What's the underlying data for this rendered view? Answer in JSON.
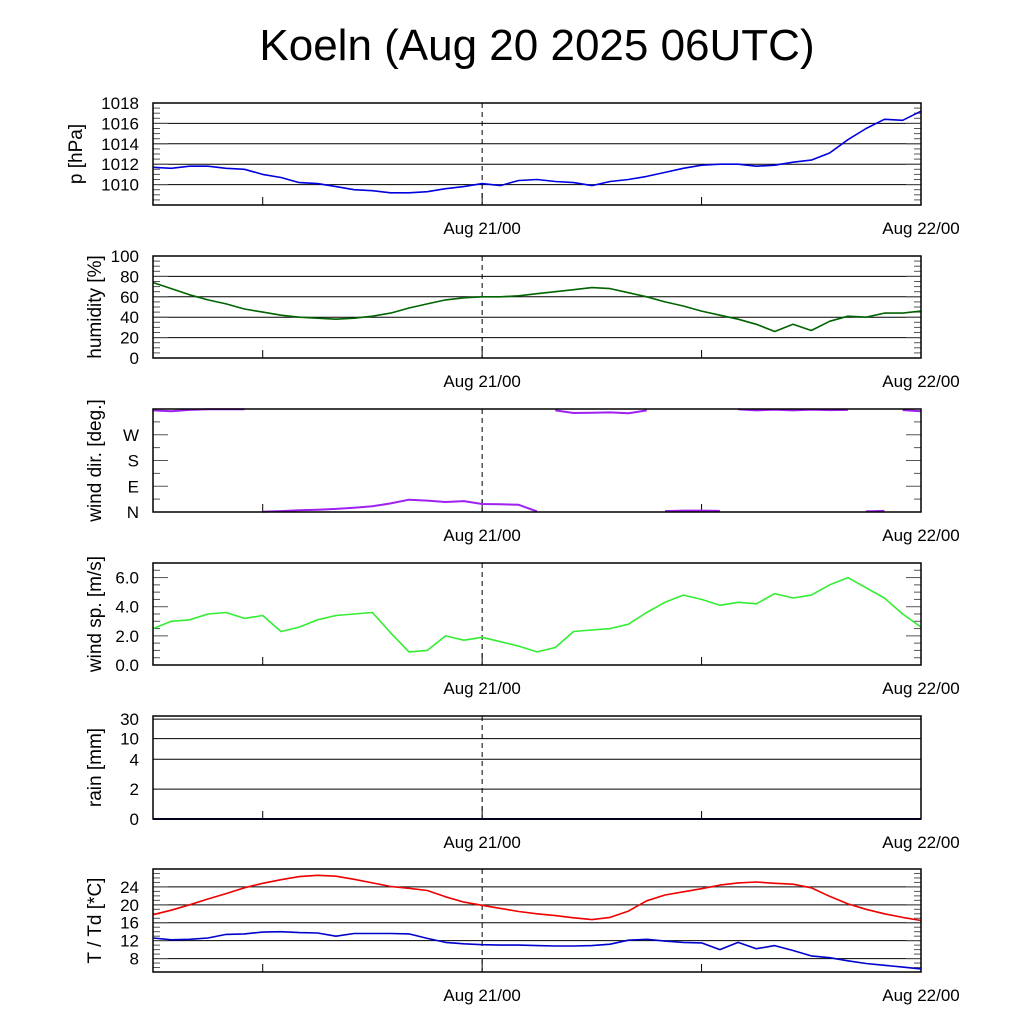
{
  "title": "Koeln (Aug 20 2025 06UTC)",
  "chart_data": [
    {
      "type": "line",
      "id": "pressure",
      "ylabel": "p [hPa]",
      "ylim": [
        1008,
        1018
      ],
      "yticks": [
        1010,
        1012,
        1014,
        1016,
        1018
      ],
      "ytick_labels": [
        "1010",
        "1012",
        "1014",
        "1016",
        "1018"
      ],
      "gridlines": [
        1010,
        1012,
        1014,
        1016
      ],
      "minor_step": 0.5,
      "xlabel_ticks": [
        "Aug 21/00",
        "Aug 22/00"
      ],
      "x_hours": "0..42 hourly from Aug 20 06UTC",
      "series": [
        {
          "name": "pressure",
          "color": "#0000e0",
          "values": [
            1011.7,
            1011.6,
            1011.8,
            1011.8,
            1011.6,
            1011.5,
            1011.0,
            1010.7,
            1010.2,
            1010.1,
            1009.8,
            1009.5,
            1009.4,
            1009.2,
            1009.2,
            1009.3,
            1009.6,
            1009.8,
            1010.1,
            1009.9,
            1010.4,
            1010.5,
            1010.3,
            1010.2,
            1009.9,
            1010.3,
            1010.5,
            1010.8,
            1011.2,
            1011.6,
            1011.9,
            1012.0,
            1012.0,
            1011.8,
            1011.9,
            1012.2,
            1012.4,
            1013.1,
            1014.4,
            1015.5,
            1016.4,
            1016.3,
            1017.2
          ]
        }
      ]
    },
    {
      "type": "line",
      "id": "humidity",
      "ylabel": "humidity [%]",
      "ylim": [
        0,
        100
      ],
      "yticks": [
        0,
        20,
        40,
        60,
        80,
        100
      ],
      "ytick_labels": [
        "0",
        "20",
        "40",
        "60",
        "80",
        "100"
      ],
      "gridlines": [
        20,
        40,
        60,
        80
      ],
      "minor_step": 5,
      "xlabel_ticks": [
        "Aug 21/00",
        "Aug 22/00"
      ],
      "series": [
        {
          "name": "humidity",
          "color": "#006400",
          "values": [
            74,
            68,
            62,
            57,
            53,
            48,
            45,
            42,
            40,
            39,
            38,
            39,
            41,
            44,
            49,
            53,
            57,
            59,
            60,
            60,
            61,
            63,
            65,
            67,
            69,
            68,
            64,
            60,
            55,
            51,
            46,
            42,
            38,
            33,
            26,
            33,
            27,
            36,
            41,
            40,
            44,
            44,
            46
          ]
        }
      ]
    },
    {
      "type": "line",
      "id": "wind_direction",
      "ylabel": "wind dir. [deg.]",
      "ylim": [
        0,
        360
      ],
      "yticks": [
        0,
        90,
        180,
        270
      ],
      "ytick_labels": [
        "N",
        "E",
        "S",
        "W"
      ],
      "gridlines": [],
      "minor_step": 45,
      "xlabel_ticks": [
        "Aug 21/00",
        "Aug 22/00"
      ],
      "series": [
        {
          "name": "wind direction",
          "color": "#a020f0",
          "values": [
            355,
            352,
            357,
            359,
            359,
            359,
            1,
            3,
            6,
            8,
            11,
            15,
            20,
            30,
            43,
            40,
            35,
            38,
            28,
            27,
            25,
            2,
            355,
            346,
            347,
            348,
            345,
            355,
            3,
            5,
            5,
            4,
            359,
            355,
            358,
            355,
            358,
            356,
            357,
            2,
            4,
            356,
            352
          ]
        }
      ]
    },
    {
      "type": "line",
      "id": "wind_speed",
      "ylabel": "wind sp. [m/s]",
      "ylim": [
        0,
        7
      ],
      "yticks": [
        0,
        2,
        4,
        6
      ],
      "ytick_labels": [
        "0.0",
        "2.0",
        "4.0",
        "6.0"
      ],
      "gridlines": [],
      "minor_step": 0.5,
      "xlabel_ticks": [
        "Aug 21/00",
        "Aug 22/00"
      ],
      "series": [
        {
          "name": "wind speed",
          "color": "#33ee33",
          "values": [
            2.5,
            3.0,
            3.1,
            3.5,
            3.6,
            3.2,
            3.4,
            2.3,
            2.6,
            3.1,
            3.4,
            3.5,
            3.6,
            2.2,
            0.9,
            1.0,
            2.0,
            1.7,
            1.9,
            1.6,
            1.3,
            0.9,
            1.2,
            2.3,
            2.4,
            2.5,
            2.8,
            3.6,
            4.3,
            4.8,
            4.5,
            4.1,
            4.3,
            4.2,
            4.9,
            4.6,
            4.8,
            5.5,
            6.0,
            5.3,
            4.6,
            3.5,
            2.6
          ]
        }
      ]
    },
    {
      "type": "line",
      "id": "rain",
      "ylabel": "rain [mm]",
      "ylim": [
        0,
        30
      ],
      "yticks": [
        0,
        2,
        4,
        10,
        30
      ],
      "ytick_labels": [
        "0",
        "2",
        "4",
        "10",
        "30"
      ],
      "gridlines": [
        2,
        4,
        10,
        30
      ],
      "xlabel_ticks": [
        "Aug 21/00",
        "Aug 22/00"
      ],
      "series": [
        {
          "name": "rain",
          "color": "#000080",
          "values": [
            0,
            0,
            0,
            0,
            0,
            0,
            0,
            0,
            0,
            0,
            0,
            0,
            0,
            0,
            0,
            0,
            0,
            0,
            0,
            0,
            0,
            0,
            0,
            0,
            0,
            0,
            0,
            0,
            0,
            0,
            0,
            0,
            0,
            0,
            0,
            0,
            0,
            0,
            0,
            0,
            0,
            0,
            0
          ]
        }
      ]
    },
    {
      "type": "line",
      "id": "temperature",
      "ylabel": "T / Td [*C]",
      "ylim": [
        5,
        28
      ],
      "yticks": [
        8,
        12,
        16,
        20,
        24
      ],
      "ytick_labels": [
        "8",
        "12",
        "16",
        "20",
        "24"
      ],
      "gridlines": [
        8,
        12,
        16,
        20,
        24
      ],
      "minor_step": 1,
      "xlabel_ticks": [
        "Aug 21/00",
        "Aug 22/00"
      ],
      "series": [
        {
          "name": "T",
          "color": "#ee0000",
          "values": [
            17.8,
            18.8,
            20.0,
            21.3,
            22.5,
            23.8,
            24.8,
            25.6,
            26.3,
            26.6,
            26.4,
            25.7,
            24.9,
            24.1,
            23.7,
            23.2,
            21.8,
            20.6,
            19.9,
            19.2,
            18.5,
            18.0,
            17.6,
            17.1,
            16.7,
            17.2,
            18.6,
            20.9,
            22.2,
            22.9,
            23.6,
            24.4,
            24.9,
            25.1,
            24.8,
            24.6,
            23.8,
            21.9,
            20.2,
            19.0,
            18.0,
            17.2,
            16.5
          ]
        }
      ]
    },
    {
      "type": "line",
      "id": "dewpoint",
      "panel": "temperature",
      "series": [
        {
          "name": "Td",
          "color": "#0000cc",
          "values": [
            12.6,
            12.2,
            12.3,
            12.6,
            13.4,
            13.5,
            13.9,
            14.0,
            13.8,
            13.7,
            13.0,
            13.6,
            13.6,
            13.6,
            13.5,
            12.5,
            11.6,
            11.3,
            11.1,
            11.0,
            11.0,
            10.9,
            10.8,
            10.8,
            10.9,
            11.2,
            12.1,
            12.3,
            11.9,
            11.6,
            11.5,
            10.0,
            11.6,
            10.2,
            10.9,
            9.8,
            8.6,
            8.2,
            7.5,
            6.9,
            6.5,
            6.1,
            5.7
          ]
        }
      ]
    }
  ]
}
